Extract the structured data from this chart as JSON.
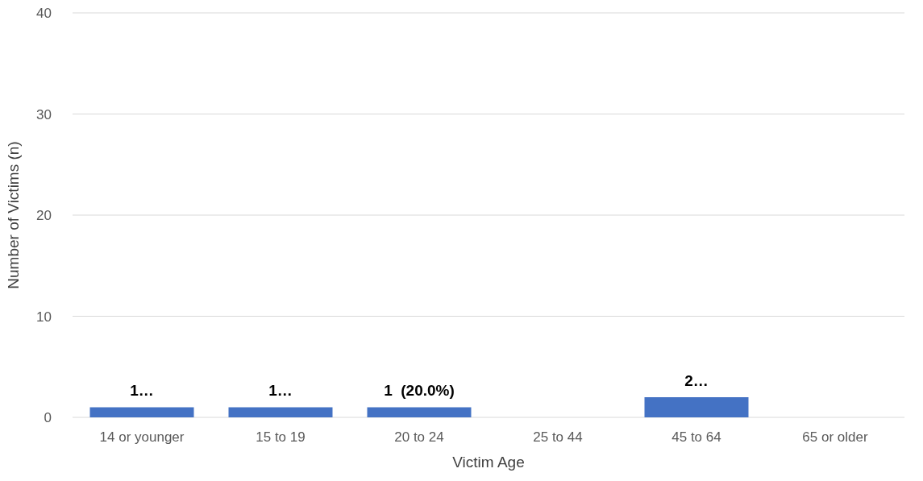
{
  "chart_data": {
    "type": "bar",
    "xlabel": "Victim Age",
    "ylabel": "Number of Victims (n)",
    "categories": [
      "14 or younger",
      "15 to 19",
      "20 to 24",
      "25 to 44",
      "45 to 64",
      "65 or older"
    ],
    "values": [
      1,
      1,
      1,
      0,
      2,
      0
    ],
    "color": "#4472c4",
    "value_labels": [
      "1…",
      "1…",
      "1  (20.0%)",
      null,
      "2…",
      null
    ],
    "ylim": [
      0,
      40
    ],
    "yticks": [
      0,
      10,
      20,
      30,
      40
    ],
    "grid": "y"
  }
}
